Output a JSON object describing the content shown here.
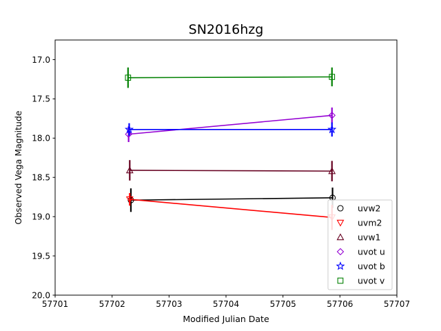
{
  "chart_data": {
    "type": "scatter",
    "title": "SN2016hzg",
    "xlabel": "Modified Julian Date",
    "ylabel": "Observed Vega Magnitude",
    "xlim": [
      57701,
      57707
    ],
    "ylim": [
      20.0,
      16.75
    ],
    "y_inverted": true,
    "x_ticks": [
      "57701",
      "57702",
      "57703",
      "57704",
      "57705",
      "57706",
      "57707"
    ],
    "y_ticks": [
      "17.0",
      "17.5",
      "18.0",
      "18.5",
      "19.0",
      "19.5",
      "20.0"
    ],
    "grid": false,
    "legend_position": "lower-right",
    "series": [
      {
        "name": "uvw2",
        "color": "#000000",
        "marker": "circle",
        "points": [
          {
            "x": 57702.33,
            "y": 18.79,
            "err": 0.15
          },
          {
            "x": 57705.87,
            "y": 18.76,
            "err": 0.13
          }
        ]
      },
      {
        "name": "uvm2",
        "color": "#ff0000",
        "marker": "triangle-down",
        "points": [
          {
            "x": 57702.31,
            "y": 18.78,
            "err": 0.08
          },
          {
            "x": 57705.86,
            "y": 19.01,
            "err": 0.16
          }
        ]
      },
      {
        "name": "uvw1",
        "color": "#660020",
        "marker": "triangle-up",
        "points": [
          {
            "x": 57702.31,
            "y": 18.41,
            "err": 0.13
          },
          {
            "x": 57705.86,
            "y": 18.42,
            "err": 0.13
          }
        ]
      },
      {
        "name": "uvot u",
        "color": "#9400d3",
        "marker": "diamond",
        "points": [
          {
            "x": 57702.29,
            "y": 17.95,
            "err": 0.1
          },
          {
            "x": 57705.86,
            "y": 17.71,
            "err": 0.1
          }
        ]
      },
      {
        "name": "uvot b",
        "color": "#0000ff",
        "marker": "star",
        "points": [
          {
            "x": 57702.3,
            "y": 17.89,
            "err": 0.08
          },
          {
            "x": 57705.86,
            "y": 17.89,
            "err": 0.09
          }
        ]
      },
      {
        "name": "uvot v",
        "color": "#008000",
        "marker": "square",
        "points": [
          {
            "x": 57702.28,
            "y": 17.23,
            "err": 0.13
          },
          {
            "x": 57705.86,
            "y": 17.22,
            "err": 0.12
          }
        ]
      }
    ]
  }
}
